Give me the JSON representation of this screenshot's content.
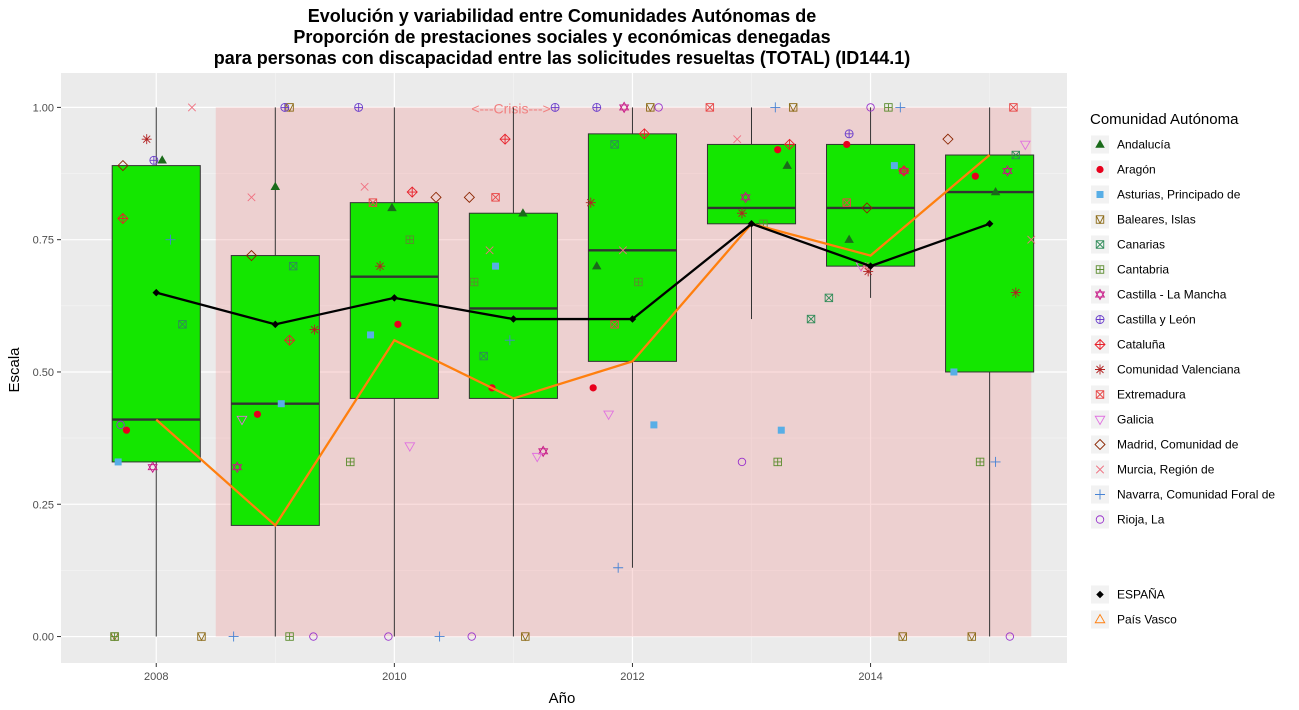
{
  "chart_data": {
    "type": "boxplot",
    "title": [
      "Evolución y variabilidad entre Comunidades Autónomas de",
      "Proporción de prestaciones sociales y económicas denegadas",
      "para personas con discapacidad entre las solicitudes resueltas (TOTAL) (ID144.1)"
    ],
    "xlabel": "Año",
    "ylabel": "Escala",
    "xlim": [
      2007.2,
      2015.65
    ],
    "ylim": [
      -0.05,
      1.065
    ],
    "x_ticks": [
      2008,
      2010,
      2012,
      2014
    ],
    "y_ticks": [
      0,
      0.25,
      0.5,
      0.75,
      1
    ],
    "y_tick_labels": [
      "0.00",
      "0.25",
      "0.50",
      "0.75",
      "1.00"
    ],
    "grid": true,
    "crisis_shade": {
      "x_start": 2008.5,
      "x_end": 2015.35,
      "y_start": 0,
      "y_end": 1,
      "label": "<---Crisis--->",
      "label_x": 2010.98,
      "label_y": 1.0
    },
    "boxes": [
      {
        "x": 2008,
        "q1": 0.33,
        "median": 0.41,
        "q3": 0.89,
        "whisker_low": 0.0,
        "whisker_high": 1.0
      },
      {
        "x": 2009,
        "q1": 0.21,
        "median": 0.44,
        "q3": 0.72,
        "whisker_low": 0.0,
        "whisker_high": 1.0
      },
      {
        "x": 2010,
        "q1": 0.45,
        "median": 0.68,
        "q3": 0.82,
        "whisker_low": 0.0,
        "whisker_high": 1.0
      },
      {
        "x": 2011,
        "q1": 0.45,
        "median": 0.62,
        "q3": 0.8,
        "whisker_low": 0.0,
        "whisker_high": 1.0
      },
      {
        "x": 2012,
        "q1": 0.52,
        "median": 0.73,
        "q3": 0.95,
        "whisker_low": 0.13,
        "whisker_high": 1.0
      },
      {
        "x": 2013,
        "q1": 0.78,
        "median": 0.81,
        "q3": 0.93,
        "whisker_low": 0.6,
        "whisker_high": 1.0
      },
      {
        "x": 2014,
        "q1": 0.7,
        "median": 0.81,
        "q3": 0.93,
        "whisker_low": 0.64,
        "whisker_high": 1.0
      },
      {
        "x": 2015,
        "q1": 0.5,
        "median": 0.84,
        "q3": 0.91,
        "whisker_low": 0.0,
        "whisker_high": 1.0
      }
    ],
    "box_fill": "#14e600",
    "line_series": [
      {
        "name": "ESPAÑA",
        "color": "#000000",
        "marker": "diamond",
        "x": [
          2008,
          2009,
          2010,
          2011,
          2012,
          2013,
          2014,
          2015
        ],
        "values": [
          0.65,
          0.59,
          0.64,
          0.6,
          0.6,
          0.78,
          0.7,
          0.78
        ]
      },
      {
        "name": "País Vasco",
        "color": "#ff7f0e",
        "marker": "triangle-open",
        "x": [
          2008,
          2009,
          2010,
          2011,
          2012,
          2013,
          2014,
          2015
        ],
        "values": [
          0.41,
          0.21,
          0.56,
          0.45,
          0.52,
          0.78,
          0.72,
          0.91
        ]
      }
    ],
    "legend": {
      "title": "Comunidad Autónoma",
      "position": "right",
      "items": [
        {
          "name": "Andalucía",
          "shape": "triangle-filled",
          "color": "#1a6b1a"
        },
        {
          "name": "Aragón",
          "shape": "circle-filled",
          "color": "#e8001c"
        },
        {
          "name": "Asturias, Principado de",
          "shape": "square-filled",
          "color": "#58aee6"
        },
        {
          "name": "Baleares, Islas",
          "shape": "square-triangle",
          "color": "#8b6914"
        },
        {
          "name": "Canarias",
          "shape": "square-x",
          "color": "#2e8b57"
        },
        {
          "name": "Cantabria",
          "shape": "square-plus",
          "color": "#5b8c2e"
        },
        {
          "name": "Castilla - La Mancha",
          "shape": "star-david",
          "color": "#c71585"
        },
        {
          "name": "Castilla y León",
          "shape": "circle-plus",
          "color": "#6a3dcc"
        },
        {
          "name": "Cataluña",
          "shape": "diamond-plus",
          "color": "#e8202a"
        },
        {
          "name": "Comunidad Valenciana",
          "shape": "asterisk",
          "color": "#b22222"
        },
        {
          "name": "Extremadura",
          "shape": "square-x",
          "color": "#e84545"
        },
        {
          "name": "Galicia",
          "shape": "triangle-down",
          "color": "#e070e0"
        },
        {
          "name": "Madrid, Comunidad de",
          "shape": "diamond",
          "color": "#8b2500"
        },
        {
          "name": "Murcia, Región de",
          "shape": "x",
          "color": "#f07080"
        },
        {
          "name": "Navarra, Comunidad Foral de",
          "shape": "plus",
          "color": "#4682d4"
        },
        {
          "name": "Rioja, La",
          "shape": "circle-open",
          "color": "#9932cc"
        }
      ],
      "extra": [
        {
          "name": "ESPAÑA",
          "shape": "diamond-filled",
          "color": "#000000"
        },
        {
          "name": "País Vasco",
          "shape": "triangle-open",
          "color": "#ff7f0e"
        }
      ]
    },
    "points": [
      {
        "region": "Andalucía",
        "data": [
          [
            2008.05,
            0.9
          ],
          [
            2009.0,
            0.85
          ],
          [
            2009.98,
            0.81
          ],
          [
            2011.08,
            0.8
          ],
          [
            2011.7,
            0.7
          ],
          [
            2013.3,
            0.89
          ],
          [
            2013.82,
            0.75
          ],
          [
            2015.05,
            0.84
          ]
        ]
      },
      {
        "region": "Aragón",
        "data": [
          [
            2007.75,
            0.39
          ],
          [
            2008.85,
            0.42
          ],
          [
            2010.03,
            0.59
          ],
          [
            2010.82,
            0.47
          ],
          [
            2011.67,
            0.47
          ],
          [
            2013.22,
            0.92
          ],
          [
            2013.8,
            0.93
          ],
          [
            2014.88,
            0.87
          ]
        ]
      },
      {
        "region": "Asturias, Principado de",
        "data": [
          [
            2007.68,
            0.33
          ],
          [
            2009.05,
            0.44
          ],
          [
            2009.8,
            0.57
          ],
          [
            2010.85,
            0.7
          ],
          [
            2012.18,
            0.4
          ],
          [
            2013.25,
            0.39
          ],
          [
            2014.2,
            0.89
          ],
          [
            2014.7,
            0.5
          ]
        ]
      },
      {
        "region": "Baleares, Islas",
        "data": [
          [
            2007.65,
            0.0
          ],
          [
            2008.38,
            0.0
          ],
          [
            2009.12,
            1.0
          ],
          [
            2011.1,
            0.0
          ],
          [
            2012.15,
            1.0
          ],
          [
            2013.35,
            1.0
          ],
          [
            2014.27,
            0.0
          ],
          [
            2014.85,
            0.0
          ]
        ]
      },
      {
        "region": "Canarias",
        "data": [
          [
            2008.22,
            0.59
          ],
          [
            2009.15,
            0.7
          ],
          [
            2010.75,
            0.53
          ],
          [
            2011.85,
            0.93
          ],
          [
            2013.5,
            0.6
          ],
          [
            2013.65,
            0.64
          ],
          [
            2015.22,
            0.91
          ]
        ]
      },
      {
        "region": "Cantabria",
        "data": [
          [
            2007.65,
            0.0
          ],
          [
            2009.12,
            0.0
          ],
          [
            2009.63,
            0.33
          ],
          [
            2010.13,
            0.75
          ],
          [
            2010.67,
            0.67
          ],
          [
            2012.05,
            0.67
          ],
          [
            2013.1,
            0.78
          ],
          [
            2013.22,
            0.33
          ],
          [
            2014.15,
            1.0
          ],
          [
            2014.92,
            0.33
          ]
        ]
      },
      {
        "region": "Castilla - La Mancha",
        "data": [
          [
            2007.97,
            0.32
          ],
          [
            2008.68,
            0.32
          ],
          [
            2011.25,
            0.35
          ],
          [
            2011.93,
            1.0
          ],
          [
            2012.95,
            0.83
          ],
          [
            2014.28,
            0.88
          ],
          [
            2015.15,
            0.88
          ]
        ]
      },
      {
        "region": "Castilla y León",
        "data": [
          [
            2007.98,
            0.9
          ],
          [
            2009.08,
            1.0
          ],
          [
            2009.7,
            1.0
          ],
          [
            2011.35,
            1.0
          ],
          [
            2011.7,
            1.0
          ],
          [
            2013.82,
            0.95
          ]
        ]
      },
      {
        "region": "Cataluña",
        "data": [
          [
            2007.72,
            0.79
          ],
          [
            2009.12,
            0.56
          ],
          [
            2010.15,
            0.84
          ],
          [
            2010.93,
            0.94
          ],
          [
            2012.1,
            0.95
          ],
          [
            2013.32,
            0.93
          ],
          [
            2014.28,
            0.88
          ]
        ]
      },
      {
        "region": "Comunidad Valenciana",
        "data": [
          [
            2007.92,
            0.94
          ],
          [
            2009.33,
            0.58
          ],
          [
            2009.88,
            0.7
          ],
          [
            2011.65,
            0.82
          ],
          [
            2012.92,
            0.8
          ],
          [
            2013.98,
            0.69
          ],
          [
            2015.22,
            0.65
          ]
        ]
      },
      {
        "region": "Extremadura",
        "data": [
          [
            2009.82,
            0.82
          ],
          [
            2010.85,
            0.83
          ],
          [
            2011.85,
            0.59
          ],
          [
            2012.65,
            1.0
          ],
          [
            2013.8,
            0.82
          ],
          [
            2015.2,
            1.0
          ]
        ]
      },
      {
        "region": "Galicia",
        "data": [
          [
            2008.72,
            0.41
          ],
          [
            2010.13,
            0.36
          ],
          [
            2011.2,
            0.34
          ],
          [
            2011.8,
            0.42
          ],
          [
            2013.92,
            0.7
          ],
          [
            2015.3,
            0.93
          ]
        ]
      },
      {
        "region": "Madrid, Comunidad de",
        "data": [
          [
            2007.72,
            0.89
          ],
          [
            2008.8,
            0.72
          ],
          [
            2010.35,
            0.83
          ],
          [
            2010.63,
            0.83
          ],
          [
            2013.97,
            0.81
          ],
          [
            2014.65,
            0.94
          ]
        ]
      },
      {
        "region": "Murcia, Región de",
        "data": [
          [
            2008.3,
            1.0
          ],
          [
            2008.8,
            0.83
          ],
          [
            2009.75,
            0.85
          ],
          [
            2010.8,
            0.73
          ],
          [
            2011.92,
            0.73
          ],
          [
            2012.88,
            0.94
          ],
          [
            2013.95,
            0.7
          ],
          [
            2015.35,
            0.75
          ]
        ]
      },
      {
        "region": "Navarra, Comunidad Foral de",
        "data": [
          [
            2008.12,
            0.75
          ],
          [
            2008.65,
            0.0
          ],
          [
            2010.38,
            0.0
          ],
          [
            2010.97,
            0.56
          ],
          [
            2011.88,
            0.13
          ],
          [
            2013.2,
            1.0
          ],
          [
            2014.25,
            1.0
          ],
          [
            2015.05,
            0.33
          ]
        ]
      },
      {
        "region": "Rioja, La",
        "data": [
          [
            2007.7,
            0.4
          ],
          [
            2009.32,
            0.0
          ],
          [
            2009.95,
            0.0
          ],
          [
            2010.65,
            0.0
          ],
          [
            2012.22,
            1.0
          ],
          [
            2012.92,
            0.33
          ],
          [
            2014.0,
            1.0
          ],
          [
            2015.17,
            0.0
          ]
        ]
      }
    ]
  }
}
